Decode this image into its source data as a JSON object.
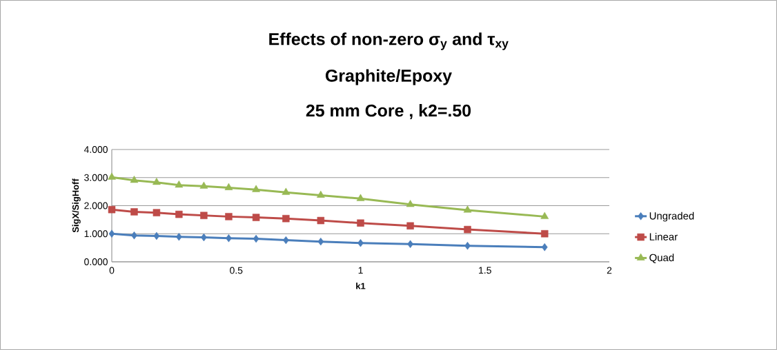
{
  "chart_data": {
    "type": "line",
    "title": "Effects of non-zero σ$_{y}$ and τ$_{xy}$",
    "subtitle": "Graphite/Epoxy",
    "annotations": [
      "25 mm Core , k2=.50"
    ],
    "xlabel": "k1",
    "ylabel": "SigX/SigHoff",
    "x": [
      0,
      0.09,
      0.18,
      0.27,
      0.37,
      0.47,
      0.58,
      0.7,
      0.84,
      1.0,
      1.2,
      1.43,
      1.74
    ],
    "series": [
      {
        "name": "Ungraded",
        "color": "#4a7ebb",
        "marker": "diamond",
        "values": [
          1.0,
          0.94,
          0.92,
          0.89,
          0.87,
          0.84,
          0.82,
          0.77,
          0.72,
          0.67,
          0.63,
          0.57,
          0.52
        ]
      },
      {
        "name": "Linear",
        "color": "#be4b48",
        "marker": "square",
        "values": [
          1.86,
          1.78,
          1.75,
          1.69,
          1.65,
          1.61,
          1.58,
          1.54,
          1.47,
          1.38,
          1.28,
          1.15,
          1.0
        ]
      },
      {
        "name": "Quad",
        "color": "#98b954",
        "marker": "triangle",
        "values": [
          3.01,
          2.9,
          2.83,
          2.73,
          2.69,
          2.64,
          2.57,
          2.47,
          2.37,
          2.25,
          2.04,
          1.84,
          1.61
        ]
      }
    ],
    "xlim": [
      0,
      2
    ],
    "xticks": [
      0,
      0.5,
      1,
      1.5,
      2
    ],
    "ylim": [
      0,
      4
    ],
    "yticks": [
      {
        "value": 0,
        "label": "0.000"
      },
      {
        "value": 1,
        "label": "1.000"
      },
      {
        "value": 2,
        "label": "2.000"
      },
      {
        "value": 3,
        "label": "3.000"
      },
      {
        "value": 4,
        "label": "4.000"
      }
    ],
    "grid": "y",
    "legend": "right"
  }
}
